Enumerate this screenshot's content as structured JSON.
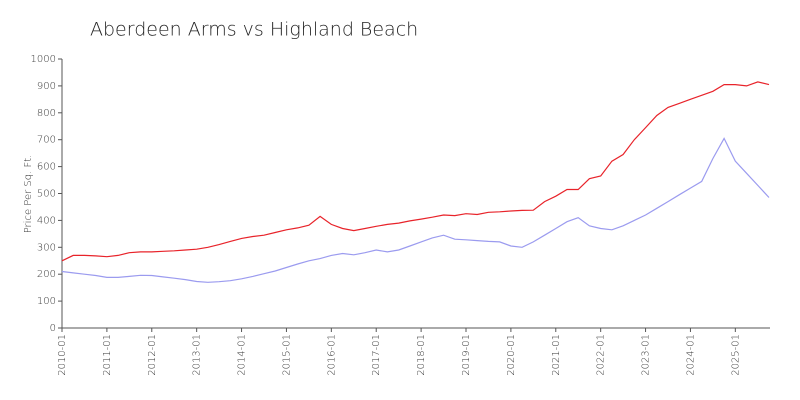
{
  "chart_data": {
    "type": "line",
    "title": "Aberdeen Arms vs Highland Beach",
    "y_label": "Price Per Sq. Ft.",
    "categories": [
      "2010-01",
      "2010-04",
      "2010-07",
      "2010-10",
      "2011-01",
      "2011-04",
      "2011-07",
      "2011-10",
      "2012-01",
      "2012-04",
      "2012-07",
      "2012-10",
      "2013-01",
      "2013-04",
      "2013-07",
      "2013-10",
      "2014-01",
      "2014-04",
      "2014-07",
      "2014-10",
      "2015-01",
      "2015-04",
      "2015-07",
      "2015-10",
      "2016-01",
      "2016-04",
      "2016-07",
      "2016-10",
      "2017-01",
      "2017-04",
      "2017-07",
      "2017-10",
      "2018-01",
      "2018-04",
      "2018-07",
      "2018-10",
      "2019-01",
      "2019-04",
      "2019-07",
      "2019-10",
      "2020-01",
      "2020-04",
      "2020-07",
      "2020-10",
      "2021-01",
      "2021-04",
      "2021-07",
      "2021-10",
      "2022-01",
      "2022-04",
      "2022-07",
      "2022-10",
      "2023-01",
      "2023-04",
      "2023-07",
      "2023-10",
      "2024-01",
      "2024-04",
      "2024-07",
      "2024-10",
      "2025-01",
      "2025-04",
      "2025-07",
      "2025-10"
    ],
    "series": [
      {
        "color": "#e8232a",
        "values": [
          250,
          270,
          270,
          268,
          265,
          270,
          280,
          283,
          283,
          285,
          287,
          290,
          293,
          300,
          310,
          322,
          333,
          340,
          345,
          355,
          365,
          372,
          382,
          415,
          385,
          370,
          362,
          370,
          378,
          385,
          390,
          398,
          405,
          412,
          420,
          418,
          425,
          422,
          430,
          432,
          435,
          437,
          438,
          470,
          490,
          515,
          515,
          555,
          565,
          620,
          645,
          700,
          745,
          790,
          820,
          835,
          850,
          865,
          880,
          905,
          905,
          900,
          915,
          905
        ]
      },
      {
        "color": "#9b9bef",
        "values": [
          210,
          205,
          200,
          195,
          188,
          188,
          192,
          196,
          195,
          190,
          185,
          180,
          173,
          170,
          172,
          176,
          183,
          192,
          202,
          212,
          225,
          238,
          250,
          258,
          270,
          277,
          272,
          280,
          290,
          283,
          290,
          305,
          320,
          335,
          345,
          330,
          328,
          325,
          322,
          320,
          305,
          300,
          320,
          345,
          370,
          395,
          410,
          380,
          370,
          365,
          380,
          400,
          420,
          445,
          470,
          495,
          520,
          545,
          630,
          705,
          620,
          575,
          530,
          485
        ]
      }
    ],
    "xticks": [
      "2010-01",
      "2011-01",
      "2012-01",
      "2013-01",
      "2014-01",
      "2015-01",
      "2016-01",
      "2017-01",
      "2018-01",
      "2019-01",
      "2020-01",
      "2021-01",
      "2022-01",
      "2023-01",
      "2024-01",
      "2025-01"
    ],
    "ylim": [
      0,
      1000
    ],
    "yticks": [
      0,
      100,
      200,
      300,
      400,
      500,
      600,
      700,
      800,
      900,
      1000
    ]
  }
}
